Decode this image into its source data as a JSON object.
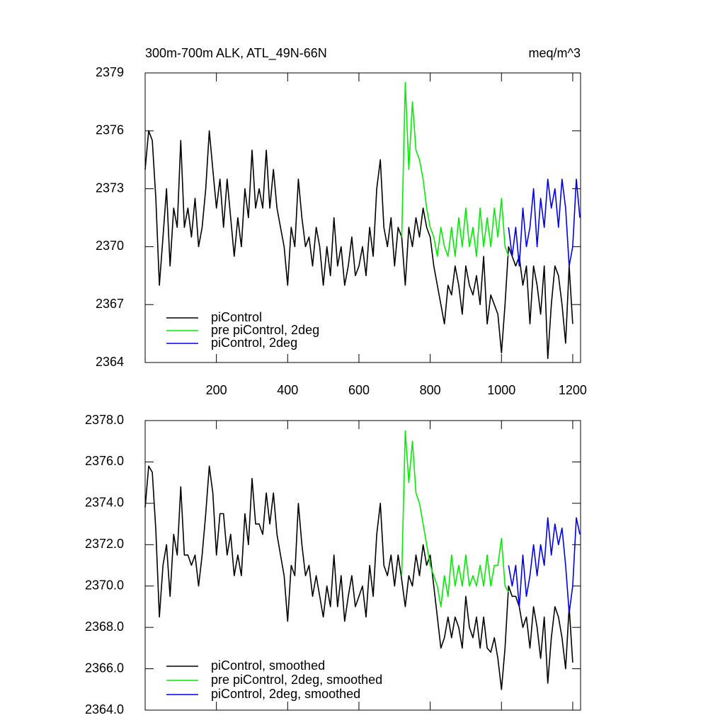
{
  "chart_data": [
    {
      "type": "line",
      "title": "300m-700m ALK, ATL_49N-66N",
      "units": "meq/m^3",
      "xlim": [
        0,
        1222
      ],
      "xticks": [
        200,
        400,
        600,
        800,
        1000,
        1200
      ],
      "show_xtick_labels": true,
      "ylim": [
        2364,
        2379
      ],
      "yticks": [
        2364,
        2367,
        2370,
        2373,
        2376,
        2379
      ],
      "legend": "lower left",
      "series": [
        {
          "name": "piControl",
          "color": "#000000",
          "x": [
            0,
            10,
            20,
            30,
            40,
            50,
            60,
            70,
            80,
            90,
            100,
            110,
            120,
            130,
            140,
            150,
            160,
            170,
            180,
            190,
            200,
            210,
            220,
            230,
            240,
            250,
            260,
            270,
            280,
            290,
            300,
            310,
            320,
            330,
            340,
            350,
            360,
            370,
            380,
            390,
            400,
            410,
            420,
            430,
            440,
            450,
            460,
            470,
            480,
            490,
            500,
            510,
            520,
            530,
            540,
            550,
            560,
            570,
            580,
            590,
            600,
            610,
            620,
            630,
            640,
            650,
            660,
            670,
            680,
            690,
            700,
            710,
            720,
            730,
            740,
            750,
            760,
            770,
            780,
            790,
            800,
            810,
            820,
            830,
            840,
            850,
            860,
            870,
            880,
            890,
            900,
            910,
            920,
            930,
            940,
            950,
            960,
            970,
            980,
            990,
            1000,
            1010,
            1020,
            1030,
            1040,
            1050,
            1060,
            1070,
            1080,
            1090,
            1100,
            1110,
            1120,
            1130,
            1140,
            1150,
            1160,
            1170,
            1180,
            1190,
            1200
          ],
          "values": [
            2374,
            2376,
            2375.5,
            2372.5,
            2368,
            2370.5,
            2373,
            2369,
            2372,
            2371,
            2375.5,
            2371,
            2372,
            2370.5,
            2372.5,
            2370,
            2371,
            2373,
            2376,
            2374,
            2372,
            2373.5,
            2371,
            2373.5,
            2371.5,
            2369.5,
            2371.5,
            2370,
            2373,
            2371.5,
            2375,
            2372,
            2373,
            2372,
            2375,
            2372,
            2374,
            2372,
            2371,
            2370,
            2368,
            2371,
            2370,
            2373.5,
            2371.5,
            2370,
            2370.5,
            2369,
            2371,
            2370,
            2368,
            2370,
            2368.5,
            2371.5,
            2369,
            2370,
            2368,
            2369,
            2370.5,
            2368.5,
            2369,
            2370,
            2368.5,
            2371,
            2369.5,
            2373,
            2374.5,
            2371,
            2370,
            2371.5,
            2369,
            2371,
            2370.5,
            2368,
            2371,
            2370,
            2371.5,
            2370.5,
            2372,
            2371,
            2370.5,
            2369,
            2368,
            2367,
            2366,
            2368,
            2367.5,
            2369,
            2368,
            2366.5,
            2369,
            2368,
            2367.5,
            2368.5,
            2367,
            2369.5,
            2366,
            2367.5,
            2367,
            2366.5,
            2364.5,
            2367,
            2370,
            2369.5,
            2369,
            2369.5,
            2368,
            2369,
            2366,
            2369,
            2368,
            2366.5,
            2369,
            2364.2,
            2367,
            2369,
            2368.5,
            2367,
            2365,
            2369,
            2366
          ]
        },
        {
          "name": "pre piControl, 2deg",
          "color": "#00ee00",
          "x": [
            720,
            730,
            740,
            750,
            760,
            770,
            780,
            790,
            800,
            810,
            820,
            830,
            840,
            850,
            860,
            870,
            880,
            890,
            900,
            910,
            920,
            930,
            940,
            950,
            960,
            970,
            980,
            990,
            1000,
            1010,
            1020
          ],
          "values": [
            2370.5,
            2378.5,
            2374,
            2377.5,
            2375,
            2374.5,
            2373.5,
            2372,
            2371,
            2370.5,
            2369.5,
            2371,
            2370,
            2369.5,
            2371,
            2369.5,
            2371.5,
            2370,
            2372,
            2370,
            2371,
            2369.5,
            2372,
            2370,
            2371.5,
            2370,
            2372,
            2370.5,
            2372.5,
            2370,
            2369.5
          ]
        },
        {
          "name": "piControl, 2deg",
          "color": "#0000ee",
          "x": [
            1020,
            1030,
            1040,
            1050,
            1060,
            1070,
            1080,
            1090,
            1100,
            1110,
            1120,
            1130,
            1140,
            1150,
            1160,
            1170,
            1180,
            1190,
            1200,
            1210,
            1220
          ],
          "values": [
            2371,
            2369.5,
            2371,
            2369,
            2372,
            2370,
            2371,
            2373,
            2370,
            2372.5,
            2371,
            2373.5,
            2372,
            2373,
            2371,
            2373.5,
            2372,
            2369,
            2370,
            2373.5,
            2371.5
          ]
        }
      ]
    },
    {
      "type": "line",
      "xlim": [
        0,
        1222
      ],
      "xticks": [
        200,
        400,
        600,
        800,
        1000,
        1200
      ],
      "show_xtick_labels": false,
      "ylim": [
        2364,
        2378
      ],
      "yticks": [
        {
          "value": 2364,
          "label": "2364.0"
        },
        {
          "value": 2366,
          "label": "2366.0"
        },
        {
          "value": 2368,
          "label": "2368.0"
        },
        {
          "value": 2370,
          "label": "2370.0"
        },
        {
          "value": 2372,
          "label": "2372.0"
        },
        {
          "value": 2374,
          "label": "2374.0"
        },
        {
          "value": 2376,
          "label": "2376.0"
        },
        {
          "value": 2378,
          "label": "2378.0"
        }
      ],
      "legend": "lower left",
      "series": [
        {
          "name": "piControl, smoothed",
          "color": "#000000",
          "x": [
            0,
            10,
            20,
            30,
            40,
            50,
            60,
            70,
            80,
            90,
            100,
            110,
            120,
            130,
            140,
            150,
            160,
            170,
            180,
            190,
            200,
            210,
            220,
            230,
            240,
            250,
            260,
            270,
            280,
            290,
            300,
            310,
            320,
            330,
            340,
            350,
            360,
            370,
            380,
            390,
            400,
            410,
            420,
            430,
            440,
            450,
            460,
            470,
            480,
            490,
            500,
            510,
            520,
            530,
            540,
            550,
            560,
            570,
            580,
            590,
            600,
            610,
            620,
            630,
            640,
            650,
            660,
            670,
            680,
            690,
            700,
            710,
            720,
            730,
            740,
            750,
            760,
            770,
            780,
            790,
            800,
            810,
            820,
            830,
            840,
            850,
            860,
            870,
            880,
            890,
            900,
            910,
            920,
            930,
            940,
            950,
            960,
            970,
            980,
            990,
            1000,
            1010,
            1020,
            1030,
            1040,
            1050,
            1060,
            1070,
            1080,
            1090,
            1100,
            1110,
            1120,
            1130,
            1140,
            1150,
            1160,
            1170,
            1180,
            1190,
            1200
          ],
          "values": [
            2373.8,
            2375.8,
            2375.5,
            2372.7,
            2368.5,
            2371,
            2372,
            2369.5,
            2372.5,
            2371.5,
            2374.8,
            2371.5,
            2371.5,
            2371,
            2371.5,
            2370,
            2371.5,
            2373.5,
            2375.8,
            2374.5,
            2371.5,
            2373.5,
            2373.5,
            2371.5,
            2372.5,
            2370.5,
            2371.5,
            2370.5,
            2373.5,
            2372,
            2375.2,
            2373,
            2373,
            2372.5,
            2374.5,
            2373,
            2374.5,
            2372.5,
            2371.5,
            2370.5,
            2368.3,
            2371,
            2370.5,
            2374,
            2372,
            2370.5,
            2371,
            2369.5,
            2370.5,
            2369.5,
            2368.5,
            2370,
            2369,
            2371.5,
            2369,
            2370.5,
            2368.3,
            2369.5,
            2370.5,
            2369,
            2369.5,
            2370,
            2368.5,
            2371,
            2369.5,
            2372.5,
            2374,
            2371,
            2370.5,
            2371.5,
            2370,
            2371.5,
            2370.3,
            2369,
            2370.5,
            2370,
            2371.5,
            2370.5,
            2372,
            2371,
            2371.5,
            2370,
            2368.5,
            2367,
            2367.5,
            2368.5,
            2367.5,
            2368.5,
            2368,
            2367,
            2369.5,
            2368,
            2367.5,
            2368.5,
            2367,
            2368.5,
            2367,
            2366.8,
            2367.5,
            2366.5,
            2365,
            2367,
            2370,
            2369.5,
            2369.5,
            2369,
            2368,
            2368.5,
            2367,
            2369,
            2368,
            2366.5,
            2368.5,
            2365.3,
            2367.5,
            2369,
            2368.5,
            2367.5,
            2366,
            2369,
            2366.3
          ]
        },
        {
          "name": "pre piControl, 2deg, smoothed",
          "color": "#00ee00",
          "x": [
            720,
            730,
            740,
            750,
            760,
            770,
            780,
            790,
            800,
            810,
            820,
            830,
            840,
            850,
            860,
            870,
            880,
            890,
            900,
            910,
            920,
            930,
            940,
            950,
            960,
            970,
            980,
            990,
            1000,
            1010,
            1020
          ],
          "values": [
            2370.5,
            2377.5,
            2375,
            2377,
            2374.5,
            2374,
            2373,
            2372,
            2371,
            2370.5,
            2370,
            2369,
            2370.5,
            2369.5,
            2371.5,
            2370,
            2371,
            2370,
            2371.5,
            2370,
            2370.5,
            2370,
            2371,
            2370,
            2371.5,
            2370,
            2371,
            2371,
            2372.3,
            2370,
            2369.7
          ]
        },
        {
          "name": "piControl, 2deg, smoothed",
          "color": "#0000ee",
          "x": [
            1020,
            1030,
            1040,
            1050,
            1060,
            1070,
            1080,
            1090,
            1100,
            1110,
            1120,
            1130,
            1140,
            1150,
            1160,
            1170,
            1180,
            1190,
            1200,
            1210,
            1220
          ],
          "values": [
            2371,
            2370,
            2371,
            2369,
            2371.5,
            2369.5,
            2370.5,
            2372,
            2370.5,
            2372,
            2371,
            2373.3,
            2371.5,
            2373,
            2372,
            2372.8,
            2371,
            2368.7,
            2370,
            2373.3,
            2372.5
          ]
        }
      ]
    }
  ]
}
